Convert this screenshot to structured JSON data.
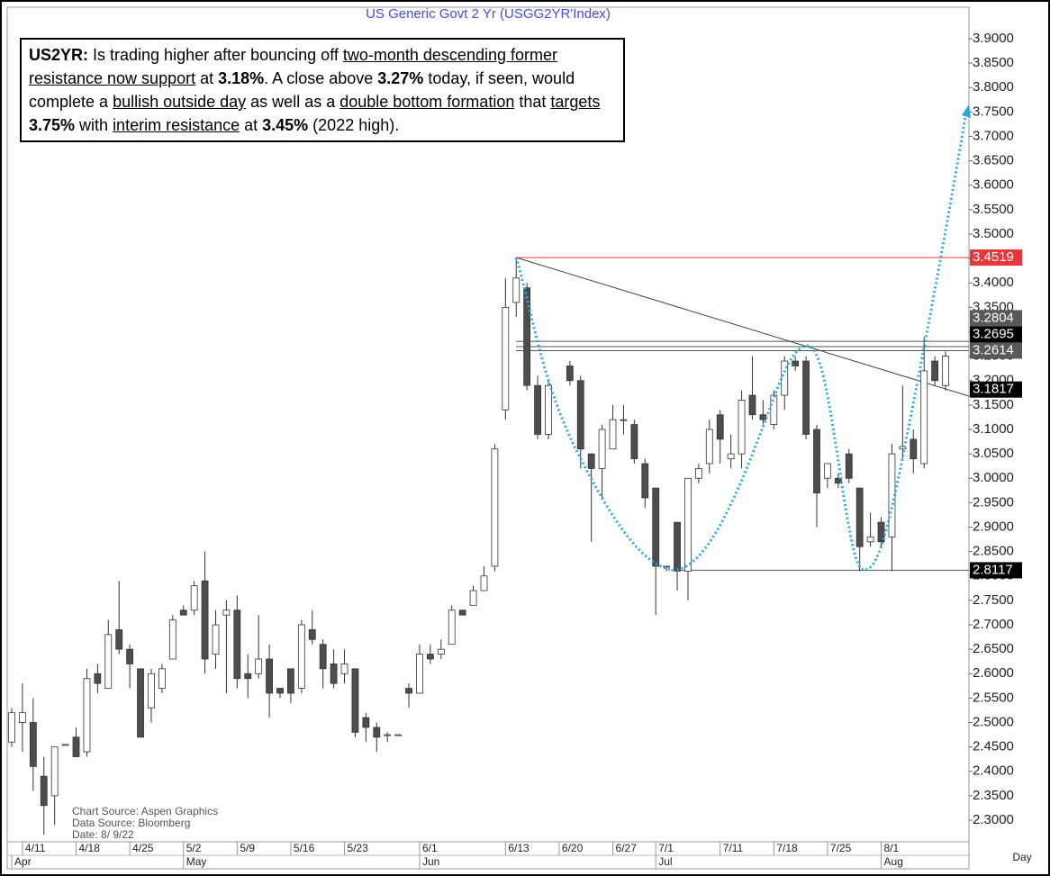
{
  "chart_data": {
    "type": "candlestick",
    "title": "US Generic Govt 2 Yr (USGG2YR'Index)",
    "x_axis_label": "Day",
    "commentary": [
      {
        "text": "US2YR:",
        "style": "bold"
      },
      {
        "text": " Is trading higher after bouncing off ",
        "style": "plain"
      },
      {
        "text": "two-month descending former resistance now support",
        "style": "underline"
      },
      {
        "text": " at ",
        "style": "plain"
      },
      {
        "text": "3.18%",
        "style": "bold"
      },
      {
        "text": ". A close above ",
        "style": "plain"
      },
      {
        "text": "3.27%",
        "style": "bold"
      },
      {
        "text": " today, if seen, would complete a ",
        "style": "plain"
      },
      {
        "text": "bullish outside day",
        "style": "underline"
      },
      {
        "text": " as well as a ",
        "style": "plain"
      },
      {
        "text": "double bottom formation",
        "style": "underline"
      },
      {
        "text": " that ",
        "style": "plain"
      },
      {
        "text": "targets",
        "style": "underline"
      },
      {
        "text": " ",
        "style": "plain"
      },
      {
        "text": "3.75%",
        "style": "bold"
      },
      {
        "text": " with ",
        "style": "plain"
      },
      {
        "text": "interim resistance",
        "style": "underline"
      },
      {
        "text": " at ",
        "style": "plain"
      },
      {
        "text": "3.45%",
        "style": "bold"
      },
      {
        "text": " (2022 high).",
        "style": "plain"
      }
    ],
    "sources": [
      "Chart Source: Aspen Graphics",
      "Data Source: Bloomberg",
      "Date: 8/ 9/22"
    ],
    "categories": [
      null,
      "4/11",
      null,
      null,
      null,
      null,
      "4/18",
      null,
      null,
      null,
      null,
      "4/25",
      null,
      null,
      null,
      null,
      "5/2",
      null,
      null,
      null,
      null,
      "5/9",
      null,
      null,
      null,
      null,
      "5/16",
      null,
      null,
      null,
      null,
      "5/23",
      null,
      null,
      null,
      null,
      null,
      null,
      "6/1",
      null,
      null,
      null,
      null,
      null,
      null,
      null,
      "6/13",
      null,
      null,
      null,
      null,
      "6/20",
      null,
      null,
      null,
      null,
      "6/27",
      null,
      null,
      null,
      "7/1",
      null,
      null,
      null,
      null,
      null,
      "7/11",
      null,
      null,
      null,
      null,
      "7/18",
      null,
      null,
      null,
      null,
      "7/25",
      null,
      null,
      null,
      null,
      "8/1",
      null,
      null,
      null,
      null,
      null,
      null
    ],
    "months": [
      "Apr",
      null,
      null,
      null,
      null,
      null,
      null,
      null,
      null,
      null,
      null,
      null,
      null,
      null,
      null,
      null,
      "May",
      null,
      null,
      null,
      null,
      null,
      null,
      null,
      null,
      null,
      null,
      null,
      null,
      null,
      null,
      null,
      null,
      null,
      null,
      null,
      null,
      null,
      "Jun",
      null,
      null,
      null,
      null,
      null,
      null,
      null,
      null,
      null,
      null,
      null,
      null,
      null,
      null,
      null,
      null,
      null,
      null,
      null,
      null,
      null,
      "Jul",
      null,
      null,
      null,
      null,
      null,
      null,
      null,
      null,
      null,
      null,
      null,
      null,
      null,
      null,
      null,
      null,
      null,
      null,
      null,
      null,
      "Aug",
      null,
      null,
      null,
      null,
      null,
      null
    ],
    "open": [
      2.46,
      2.5,
      2.5,
      2.39,
      2.35,
      2.455,
      2.47,
      2.44,
      2.6,
      2.57,
      2.69,
      2.65,
      2.61,
      2.53,
      2.57,
      2.63,
      2.73,
      2.73,
      2.79,
      2.64,
      2.72,
      2.73,
      2.6,
      2.6,
      2.63,
      2.57,
      2.61,
      2.57,
      2.69,
      2.66,
      2.62,
      2.6,
      2.61,
      2.51,
      2.49,
      2.475,
      2.475,
      2.57,
      2.56,
      2.64,
      2.64,
      2.66,
      2.73,
      2.74,
      2.77,
      2.82,
      3.14,
      3.36,
      3.39,
      3.19,
      3.09,
      null,
      3.23,
      3.2,
      3.05,
      3.02,
      3.06,
      3.12,
      3.11,
      3.03,
      2.98,
      2.82,
      2.91,
      2.81,
      3.0,
      3.03,
      3.13,
      3.04,
      3.05,
      3.17,
      3.13,
      3.11,
      3.17,
      3.24,
      3.24,
      3.1,
      3.0,
      3.0,
      3.05,
      2.98,
      2.87,
      2.91,
      2.88,
      3.06,
      3.08,
      3.03,
      3.24,
      3.19
    ],
    "high": [
      2.53,
      2.58,
      2.55,
      2.43,
      2.45,
      2.455,
      2.49,
      2.61,
      2.62,
      2.71,
      2.79,
      2.66,
      2.61,
      2.61,
      2.62,
      2.72,
      2.74,
      2.79,
      2.85,
      2.73,
      2.75,
      2.76,
      2.64,
      2.72,
      2.66,
      2.57,
      2.61,
      2.71,
      2.73,
      2.67,
      2.65,
      2.65,
      2.61,
      2.52,
      2.5,
      2.48,
      2.475,
      2.58,
      2.66,
      2.66,
      2.67,
      2.74,
      2.73,
      2.78,
      2.82,
      3.07,
      3.41,
      3.45,
      3.4,
      3.21,
      3.2,
      null,
      3.24,
      3.21,
      3.05,
      3.11,
      3.15,
      3.15,
      3.12,
      3.04,
      2.98,
      2.82,
      2.91,
      3.0,
      3.03,
      3.12,
      3.14,
      3.09,
      3.18,
      3.25,
      3.16,
      3.18,
      3.25,
      3.25,
      3.25,
      3.11,
      3.03,
      3.01,
      3.06,
      2.98,
      2.93,
      2.92,
      3.07,
      3.19,
      3.1,
      3.29,
      3.25,
      3.26
    ],
    "low": [
      2.45,
      2.44,
      2.36,
      2.27,
      2.29,
      2.455,
      2.43,
      2.43,
      2.56,
      2.57,
      2.64,
      2.57,
      2.47,
      2.5,
      2.56,
      2.63,
      2.72,
      2.72,
      2.6,
      2.61,
      2.56,
      2.57,
      2.55,
      2.59,
      2.51,
      2.55,
      2.54,
      2.56,
      2.66,
      2.57,
      2.57,
      2.58,
      2.47,
      2.46,
      2.44,
      2.46,
      2.475,
      2.53,
      2.56,
      2.62,
      2.63,
      2.66,
      2.72,
      2.74,
      2.77,
      2.81,
      3.12,
      3.33,
      3.18,
      3.08,
      3.08,
      null,
      3.19,
      3.02,
      2.87,
      2.96,
      3.06,
      3.09,
      3.03,
      2.94,
      2.72,
      2.81,
      2.77,
      2.75,
      2.99,
      3.01,
      3.03,
      3.02,
      3.02,
      3.12,
      3.11,
      3.1,
      3.14,
      3.22,
      3.08,
      2.9,
      2.98,
      2.98,
      2.99,
      2.81,
      2.86,
      2.86,
      2.81,
      3.04,
      3.01,
      3.02,
      3.19,
      3.18
    ],
    "close": [
      2.52,
      2.52,
      2.41,
      2.33,
      2.45,
      2.455,
      2.43,
      2.59,
      2.58,
      2.68,
      2.65,
      2.62,
      2.47,
      2.6,
      2.61,
      2.71,
      2.72,
      2.78,
      2.63,
      2.7,
      2.73,
      2.59,
      2.59,
      2.63,
      2.56,
      2.56,
      2.56,
      2.7,
      2.67,
      2.61,
      2.58,
      2.62,
      2.48,
      2.49,
      2.47,
      2.475,
      2.475,
      2.56,
      2.64,
      2.63,
      2.65,
      2.73,
      2.72,
      2.77,
      2.8,
      3.06,
      3.35,
      3.41,
      3.19,
      3.09,
      3.19,
      null,
      3.2,
      3.06,
      3.02,
      3.1,
      3.12,
      3.12,
      3.04,
      2.96,
      2.82,
      2.82,
      2.81,
      3.0,
      3.02,
      3.1,
      3.08,
      3.05,
      3.16,
      3.13,
      3.12,
      3.17,
      3.24,
      3.23,
      3.09,
      2.97,
      3.03,
      2.99,
      3.0,
      2.86,
      2.88,
      2.87,
      3.05,
      3.065,
      3.04,
      3.22,
      3.2,
      3.25
    ],
    "levels": [
      {
        "value": 3.4519,
        "box": "#e8373a"
      },
      {
        "value": 3.2804,
        "box": "#595959"
      },
      {
        "value": 3.2695,
        "box": "#000000"
      },
      {
        "value": 3.2614,
        "box": "#595959"
      },
      {
        "value": 3.1817,
        "box": "#000000"
      },
      {
        "value": 2.8117,
        "box": "#000000"
      }
    ],
    "ylim": [
      2.2558,
      3.9645
    ],
    "yticks": [
      {
        "value": 2.3,
        "label": "2.3000"
      },
      {
        "value": 2.35,
        "label": "2.3500"
      },
      {
        "value": 2.4,
        "label": "2.4000"
      },
      {
        "value": 2.45,
        "label": "2.4500"
      },
      {
        "value": 2.5,
        "label": "2.5000"
      },
      {
        "value": 2.55,
        "label": "2.5500"
      },
      {
        "value": 2.6,
        "label": "2.6000"
      },
      {
        "value": 2.65,
        "label": "2.6500"
      },
      {
        "value": 2.7,
        "label": "2.7000"
      },
      {
        "value": 2.75,
        "label": "2.7500"
      },
      {
        "value": 2.8,
        "label": "2.8000"
      },
      {
        "value": 2.85,
        "label": "2.8500"
      },
      {
        "value": 2.9,
        "label": "2.9000"
      },
      {
        "value": 2.95,
        "label": "2.9500"
      },
      {
        "value": 3.0,
        "label": "3.0000"
      },
      {
        "value": 3.05,
        "label": "3.0500"
      },
      {
        "value": 3.1,
        "label": "3.1000"
      },
      {
        "value": 3.15,
        "label": "3.1500"
      },
      {
        "value": 3.2,
        "label": "3.2000"
      },
      {
        "value": 3.25,
        "label": "3.2500"
      },
      {
        "value": 3.3,
        "label": "3.3000"
      },
      {
        "value": 3.35,
        "label": "3.3500"
      },
      {
        "value": 3.4,
        "label": "3.4000"
      },
      {
        "value": 3.45,
        "label": "3.4500"
      },
      {
        "value": 3.5,
        "label": "3.5000"
      },
      {
        "value": 3.55,
        "label": "3.5500"
      },
      {
        "value": 3.6,
        "label": "3.6000"
      },
      {
        "value": 3.65,
        "label": "3.6500"
      },
      {
        "value": 3.7,
        "label": "3.7000"
      },
      {
        "value": 3.75,
        "label": "3.7500"
      },
      {
        "value": 3.8,
        "label": "3.8000"
      },
      {
        "value": 3.85,
        "label": "3.8500"
      },
      {
        "value": 3.9,
        "label": "3.9000"
      }
    ],
    "up_color": "#ffffff",
    "down_color": "#4d4d4d",
    "grid": false
  }
}
